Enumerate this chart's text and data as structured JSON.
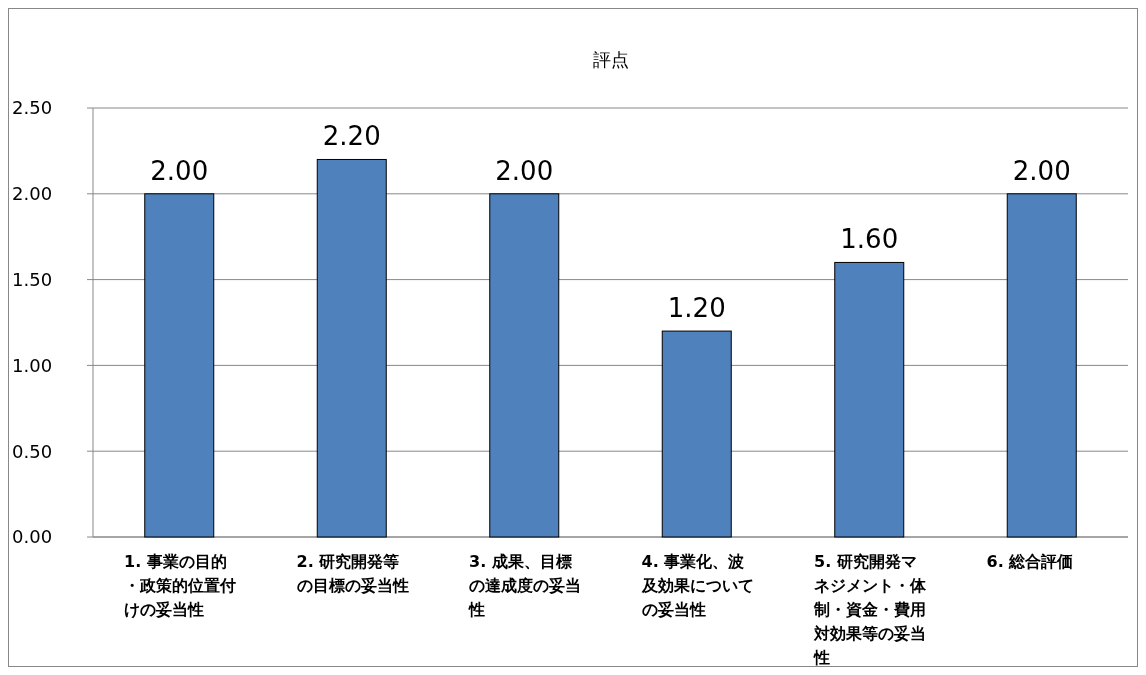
{
  "chart_data": {
    "type": "bar",
    "title": "評点",
    "categories": [
      "1. 事業の目的・政策的位置付けの妥当性",
      "2. 研究開発等の目標の妥当性",
      "3. 成果、目標の達成度の妥当性",
      "4. 事業化、波及効果についての妥当性",
      "5. 研究開発マネジメント・体制・資金・費用対効果等の妥当性",
      "6. 総合評価"
    ],
    "values": [
      2.0,
      2.2,
      2.0,
      1.2,
      1.6,
      2.0
    ],
    "value_labels": [
      "2.00",
      "2.20",
      "2.00",
      "1.20",
      "1.60",
      "2.00"
    ],
    "color": "#4f81bd",
    "ylim": [
      0,
      2.5
    ],
    "yticks": [
      {
        "value": 0,
        "label": "0.00"
      },
      {
        "value": 0.5,
        "label": "0.50"
      },
      {
        "value": 1,
        "label": "1.00"
      },
      {
        "value": 1.5,
        "label": "1.50"
      },
      {
        "value": 2,
        "label": "2.00"
      },
      {
        "value": 2.5,
        "label": "2.50"
      }
    ],
    "grid": "y"
  }
}
